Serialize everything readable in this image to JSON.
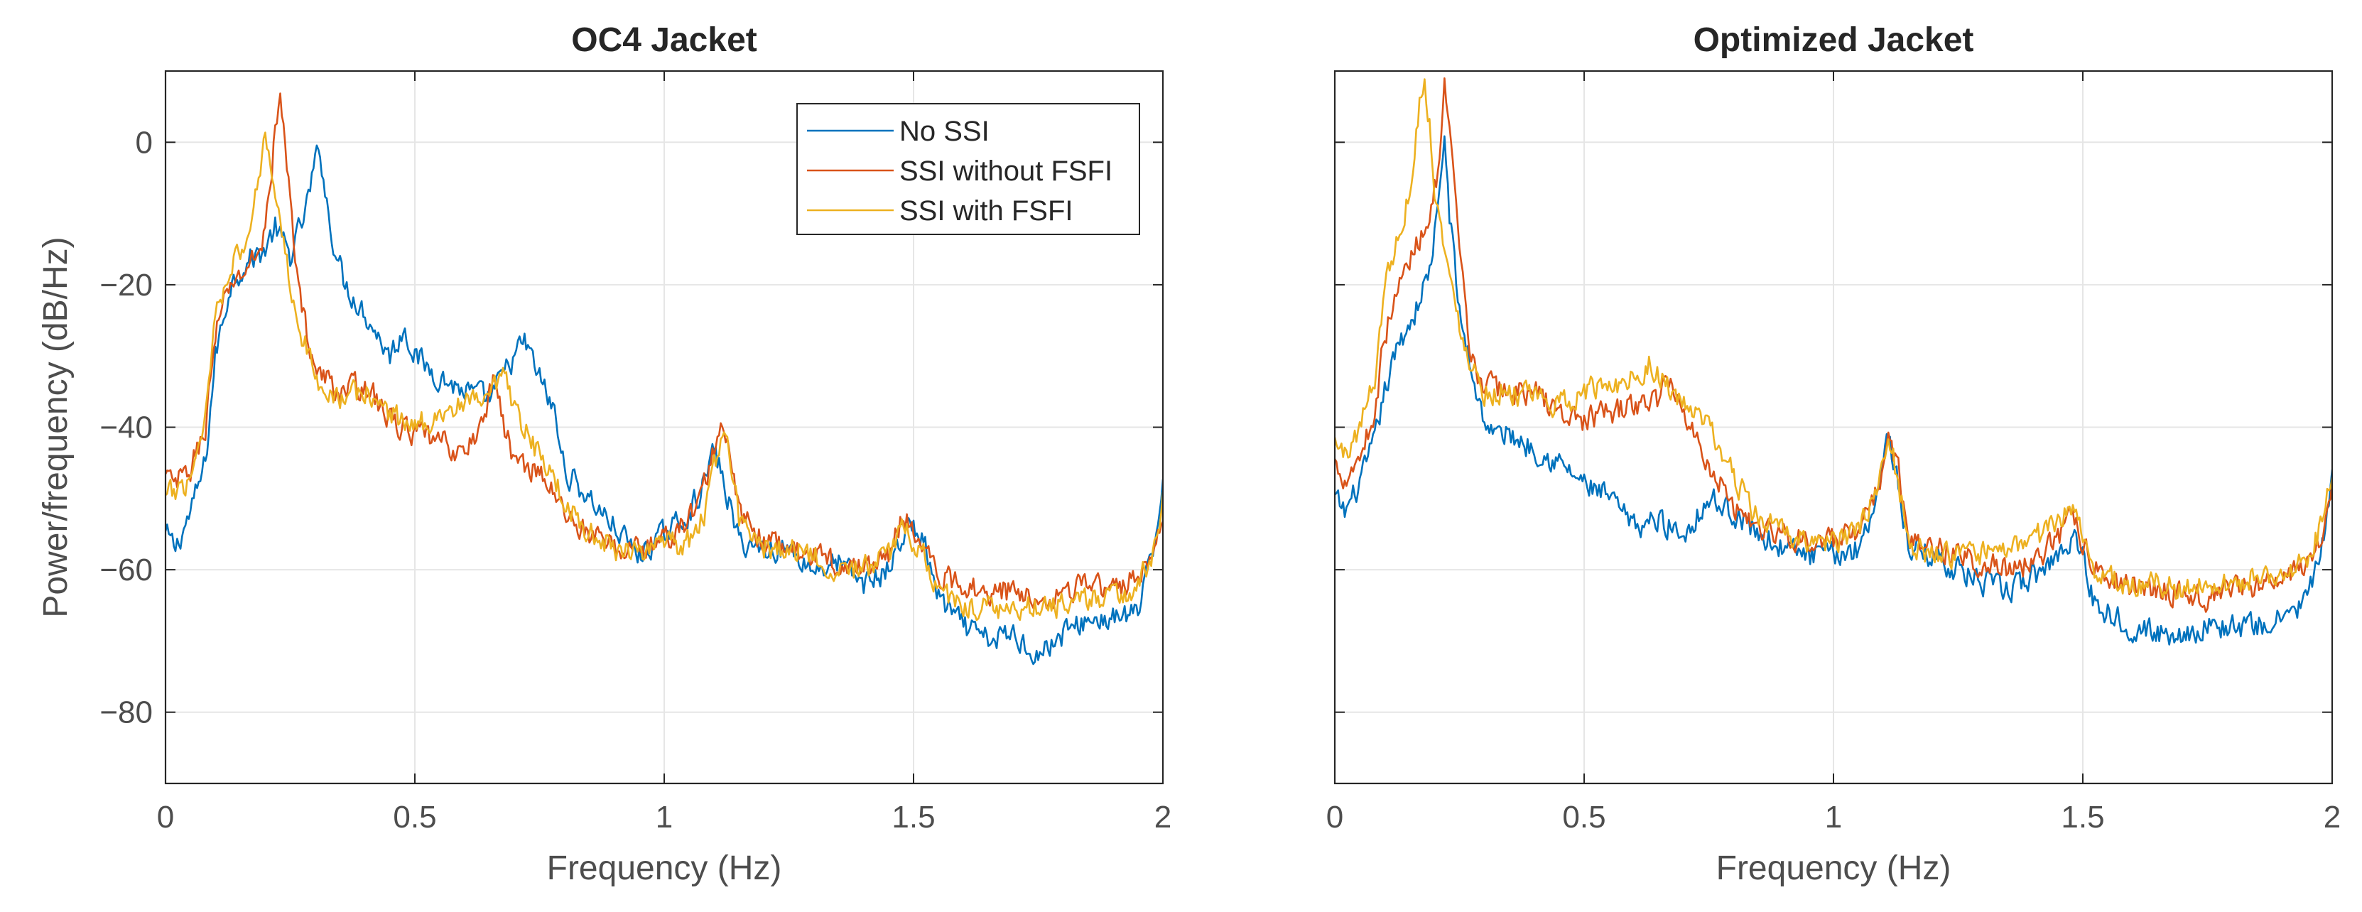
{
  "chart_data": [
    {
      "type": "line",
      "title": "OC4 Jacket",
      "xlabel": "Frequency (Hz)",
      "ylabel": "Power/frequency (dB/Hz)",
      "xlim": [
        0,
        2
      ],
      "ylim": [
        -90,
        10
      ],
      "xticks": [
        0,
        0.5,
        1,
        1.5,
        2
      ],
      "xtick_labels": [
        "0",
        "0.5",
        "1",
        "1.5",
        "2"
      ],
      "yticks": [
        0,
        -20,
        -40,
        -60,
        -80
      ],
      "ytick_labels": [
        "0",
        "−20",
        "−40",
        "−60",
        "−80"
      ],
      "grid": true,
      "legend_position": "top-right",
      "series": [
        {
          "name": "No SSI",
          "color": "#0072BD",
          "x": [
            0,
            0.02,
            0.05,
            0.08,
            0.1,
            0.13,
            0.16,
            0.2,
            0.22,
            0.25,
            0.28,
            0.3,
            0.31,
            0.33,
            0.36,
            0.4,
            0.45,
            0.48,
            0.5,
            0.55,
            0.6,
            0.65,
            0.7,
            0.72,
            0.75,
            0.78,
            0.8,
            0.85,
            0.9,
            0.95,
            1.0,
            1.05,
            1.08,
            1.1,
            1.12,
            1.15,
            1.2,
            1.25,
            1.3,
            1.35,
            1.4,
            1.45,
            1.48,
            1.5,
            1.52,
            1.55,
            1.6,
            1.65,
            1.7,
            1.75,
            1.8,
            1.85,
            1.9,
            1.95,
            1.98,
            2.0
          ],
          "y": [
            -55,
            -57,
            -52,
            -45,
            -30,
            -20,
            -17,
            -15,
            -12,
            -16,
            -10,
            -3,
            -1,
            -12,
            -20,
            -24,
            -30,
            -26,
            -30,
            -33,
            -35,
            -36,
            -30,
            -28,
            -33,
            -38,
            -46,
            -50,
            -54,
            -58,
            -55,
            -52,
            -48,
            -43,
            -48,
            -56,
            -57,
            -57,
            -60,
            -59,
            -62,
            -60,
            -55,
            -54,
            -56,
            -64,
            -68,
            -70,
            -69,
            -72,
            -69,
            -67,
            -67,
            -66,
            -58,
            -47
          ]
        },
        {
          "name": "SSI without FSFI",
          "color": "#D95319",
          "x": [
            0,
            0.02,
            0.05,
            0.08,
            0.1,
            0.13,
            0.16,
            0.19,
            0.21,
            0.22,
            0.23,
            0.25,
            0.27,
            0.3,
            0.35,
            0.4,
            0.45,
            0.5,
            0.55,
            0.6,
            0.63,
            0.66,
            0.68,
            0.7,
            0.75,
            0.8,
            0.85,
            0.9,
            0.95,
            1.0,
            1.05,
            1.08,
            1.1,
            1.12,
            1.15,
            1.2,
            1.25,
            1.3,
            1.35,
            1.4,
            1.45,
            1.48,
            1.5,
            1.52,
            1.55,
            1.6,
            1.65,
            1.7,
            1.75,
            1.8,
            1.85,
            1.9,
            1.95,
            1.98,
            2.0
          ],
          "y": [
            -47,
            -48,
            -46,
            -40,
            -27,
            -20,
            -18,
            -15,
            -7,
            2,
            6,
            -8,
            -22,
            -32,
            -35,
            -34,
            -39,
            -41,
            -42,
            -44,
            -40,
            -33,
            -40,
            -45,
            -46,
            -52,
            -55,
            -57,
            -57,
            -56,
            -53,
            -48,
            -43,
            -40,
            -52,
            -56,
            -57,
            -58,
            -59,
            -60,
            -58,
            -52,
            -54,
            -57,
            -61,
            -62,
            -63,
            -63,
            -64,
            -63,
            -62,
            -63,
            -61,
            -58,
            -52
          ]
        },
        {
          "name": "SSI with FSFI",
          "color": "#EDB120",
          "x": [
            0,
            0.02,
            0.05,
            0.08,
            0.1,
            0.13,
            0.16,
            0.18,
            0.2,
            0.21,
            0.22,
            0.24,
            0.27,
            0.3,
            0.35,
            0.4,
            0.45,
            0.5,
            0.55,
            0.6,
            0.65,
            0.68,
            0.7,
            0.75,
            0.8,
            0.85,
            0.9,
            0.95,
            1.0,
            1.05,
            1.08,
            1.1,
            1.12,
            1.15,
            1.2,
            1.25,
            1.3,
            1.35,
            1.4,
            1.45,
            1.48,
            1.5,
            1.52,
            1.55,
            1.6,
            1.65,
            1.7,
            1.75,
            1.8,
            1.85,
            1.9,
            1.95,
            1.98,
            2.0
          ],
          "y": [
            -50,
            -49,
            -47,
            -38,
            -24,
            -17,
            -15,
            -8,
            2,
            -3,
            -6,
            -16,
            -26,
            -33,
            -36,
            -35,
            -38,
            -40,
            -38,
            -37,
            -36,
            -33,
            -38,
            -44,
            -50,
            -55,
            -57,
            -57,
            -57,
            -56,
            -52,
            -46,
            -39,
            -53,
            -57,
            -57,
            -58,
            -60,
            -60,
            -58,
            -54,
            -56,
            -58,
            -63,
            -65,
            -65,
            -66,
            -65,
            -65,
            -64,
            -64,
            -62,
            -58,
            -50
          ]
        }
      ]
    },
    {
      "type": "line",
      "title": "Optimized Jacket",
      "xlabel": "Frequency (Hz)",
      "ylabel": "",
      "xlim": [
        0,
        2
      ],
      "ylim": [
        -90,
        10
      ],
      "xticks": [
        0,
        0.5,
        1,
        1.5,
        2
      ],
      "xtick_labels": [
        "0",
        "0.5",
        "1",
        "1.5",
        "2"
      ],
      "yticks": [
        0,
        -20,
        -40,
        -60,
        -80
      ],
      "grid": true,
      "series": [
        {
          "name": "No SSI",
          "color": "#0072BD",
          "x": [
            0,
            0.02,
            0.05,
            0.08,
            0.1,
            0.13,
            0.16,
            0.19,
            0.21,
            0.22,
            0.23,
            0.25,
            0.28,
            0.3,
            0.32,
            0.35,
            0.4,
            0.45,
            0.5,
            0.55,
            0.6,
            0.65,
            0.7,
            0.75,
            0.8,
            0.85,
            0.9,
            0.95,
            1.0,
            1.05,
            1.08,
            1.1,
            1.11,
            1.13,
            1.15,
            1.2,
            1.25,
            1.3,
            1.35,
            1.4,
            1.45,
            1.48,
            1.5,
            1.52,
            1.55,
            1.6,
            1.65,
            1.7,
            1.75,
            1.8,
            1.85,
            1.9,
            1.95,
            1.98,
            2.0
          ],
          "y": [
            -50,
            -52,
            -48,
            -42,
            -35,
            -28,
            -24,
            -18,
            -8,
            1,
            -10,
            -24,
            -34,
            -39,
            -41,
            -41,
            -43,
            -45,
            -48,
            -50,
            -54,
            -53,
            -55,
            -50,
            -52,
            -55,
            -57,
            -58,
            -58,
            -57,
            -51,
            -45,
            -41,
            -48,
            -57,
            -58,
            -60,
            -62,
            -63,
            -61,
            -58,
            -55,
            -58,
            -64,
            -66,
            -68,
            -69,
            -69,
            -68,
            -68,
            -68,
            -67,
            -64,
            -57,
            -48
          ]
        },
        {
          "name": "SSI without FSFI",
          "color": "#D95319",
          "x": [
            0,
            0.02,
            0.05,
            0.08,
            0.1,
            0.13,
            0.16,
            0.19,
            0.21,
            0.22,
            0.23,
            0.25,
            0.27,
            0.3,
            0.35,
            0.4,
            0.45,
            0.5,
            0.55,
            0.6,
            0.65,
            0.67,
            0.7,
            0.75,
            0.8,
            0.85,
            0.9,
            0.95,
            1.0,
            1.05,
            1.08,
            1.1,
            1.11,
            1.13,
            1.15,
            1.2,
            1.25,
            1.3,
            1.35,
            1.4,
            1.45,
            1.48,
            1.5,
            1.52,
            1.55,
            1.6,
            1.65,
            1.7,
            1.75,
            1.8,
            1.85,
            1.9,
            1.95,
            1.98,
            2.0
          ],
          "y": [
            -45,
            -47,
            -44,
            -38,
            -27,
            -20,
            -15,
            -10,
            -3,
            7,
            1,
            -15,
            -30,
            -34,
            -35,
            -35,
            -38,
            -39,
            -38,
            -37,
            -36,
            -33,
            -38,
            -45,
            -51,
            -54,
            -55,
            -56,
            -56,
            -55,
            -51,
            -45,
            -41,
            -46,
            -56,
            -57,
            -58,
            -59,
            -60,
            -59,
            -56,
            -52,
            -56,
            -60,
            -61,
            -62,
            -63,
            -63,
            -64,
            -63,
            -62,
            -62,
            -59,
            -55,
            -47
          ]
        },
        {
          "name": "SSI with FSFI",
          "color": "#EDB120",
          "x": [
            0,
            0.02,
            0.05,
            0.08,
            0.1,
            0.12,
            0.14,
            0.16,
            0.17,
            0.18,
            0.19,
            0.2,
            0.22,
            0.24,
            0.27,
            0.3,
            0.35,
            0.4,
            0.45,
            0.5,
            0.55,
            0.6,
            0.63,
            0.65,
            0.7,
            0.75,
            0.8,
            0.85,
            0.9,
            0.95,
            1.0,
            1.05,
            1.08,
            1.1,
            1.11,
            1.13,
            1.15,
            1.2,
            1.25,
            1.3,
            1.35,
            1.4,
            1.45,
            1.48,
            1.5,
            1.52,
            1.55,
            1.6,
            1.65,
            1.7,
            1.75,
            1.8,
            1.85,
            1.9,
            1.95,
            1.98,
            2.0
          ],
          "y": [
            -42,
            -44,
            -40,
            -33,
            -20,
            -15,
            -10,
            -2,
            6,
            8,
            3,
            -6,
            -15,
            -23,
            -30,
            -35,
            -35,
            -36,
            -37,
            -35,
            -34,
            -33,
            -31,
            -33,
            -37,
            -40,
            -47,
            -53,
            -55,
            -56,
            -56,
            -55,
            -50,
            -44,
            -40,
            -48,
            -56,
            -58,
            -58,
            -58,
            -57,
            -56,
            -53,
            -51,
            -56,
            -60,
            -61,
            -62,
            -62,
            -63,
            -62,
            -62,
            -61,
            -61,
            -58,
            -54,
            -46
          ]
        }
      ]
    }
  ]
}
